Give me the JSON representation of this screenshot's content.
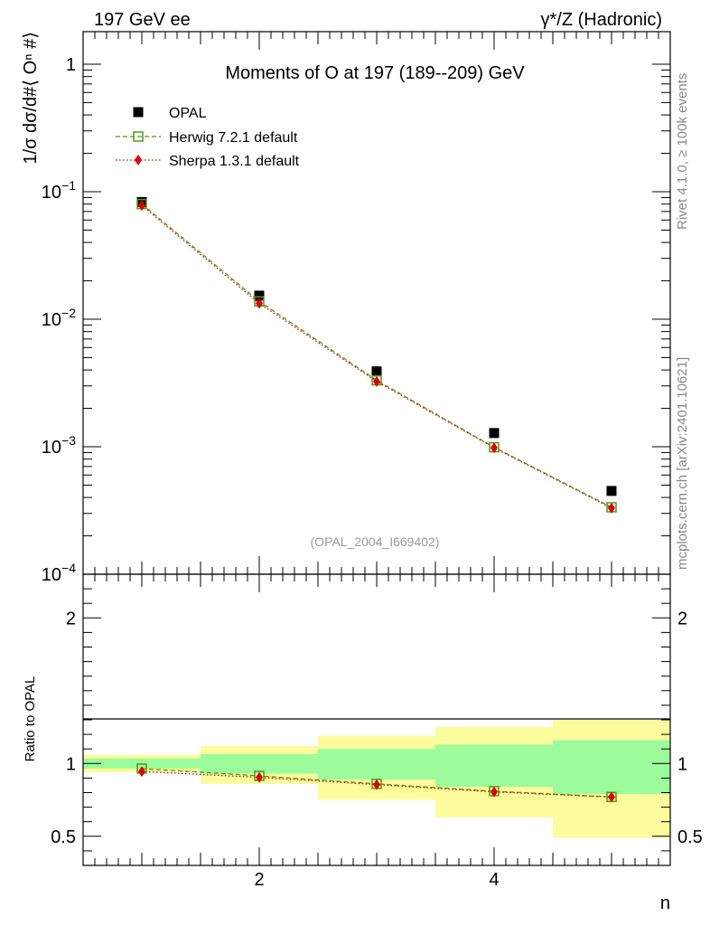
{
  "header": {
    "left": "197 GeV ee",
    "right": "γ*/Z (Hadronic)"
  },
  "side_text": {
    "rivet": "Rivet 4.1.0, ≥ 100k events",
    "mcplots": "mcplots.cern.ch [arXiv:2401.10621]"
  },
  "chart_data": [
    {
      "type": "scatter",
      "title": "Moments of O at 197 (189--209) GeV",
      "ylabel": "1/σ  dσ/d#⟨ Oⁿ #⟩",
      "xlabel": "n",
      "xlim": [
        0.5,
        5.5
      ],
      "ylim": [
        0.0001,
        1.8
      ],
      "yscale": "log",
      "watermark": "(OPAL_2004_I669402)",
      "yticks": [
        {
          "value": 1,
          "label": "1"
        },
        {
          "value": 0.1,
          "label": "10",
          "exp": "−1"
        },
        {
          "value": 0.01,
          "label": "10",
          "exp": "−2"
        },
        {
          "value": 0.001,
          "label": "10",
          "exp": "−3"
        },
        {
          "value": 0.0001,
          "label": "10",
          "exp": "−4"
        }
      ],
      "legend": [
        {
          "name": "OPAL",
          "marker": "square",
          "color": "#000000"
        },
        {
          "name": "Herwig 7.2.1 default",
          "marker": "open-square",
          "color": "#4a9a1a"
        },
        {
          "name": "Sherpa 1.3.1 default",
          "marker": "diamond",
          "color": "#e00000"
        }
      ],
      "series": [
        {
          "name": "OPAL",
          "x": [
            1,
            2,
            3,
            4,
            5
          ],
          "y": [
            0.083,
            0.0153,
            0.0039,
            0.00128,
            0.00045
          ]
        },
        {
          "name": "Herwig 7.2.1 default",
          "x": [
            1,
            2,
            3,
            4,
            5
          ],
          "y": [
            0.08,
            0.0138,
            0.00332,
            0.00099,
            0.000335
          ]
        },
        {
          "name": "Sherpa 1.3.1 default",
          "x": [
            1,
            2,
            3,
            4,
            5
          ],
          "y": [
            0.078,
            0.0133,
            0.00325,
            0.00098,
            0.00033
          ]
        }
      ]
    },
    {
      "type": "line",
      "ylabel": "Ratio to OPAL",
      "xlabel": "n",
      "xlim": [
        0.5,
        5.5
      ],
      "ylim": [
        0.3,
        2.3
      ],
      "xticks": [
        {
          "value": 2,
          "label": "2"
        },
        {
          "value": 4,
          "label": "4"
        }
      ],
      "yticks": [
        {
          "value": 0.5,
          "label": "0.5"
        },
        {
          "value": 1,
          "label": "1"
        },
        {
          "value": 2,
          "label": "2"
        }
      ],
      "bands": [
        {
          "xlo": 0.5,
          "xhi": 1.5,
          "stat": [
            0.965,
            1.035
          ],
          "total": [
            0.94,
            1.06
          ]
        },
        {
          "xlo": 1.5,
          "xhi": 2.5,
          "stat": [
            0.93,
            1.065
          ],
          "total": [
            0.86,
            1.12
          ]
        },
        {
          "xlo": 2.5,
          "xhi": 3.5,
          "stat": [
            0.89,
            1.1
          ],
          "total": [
            0.75,
            1.19
          ]
        },
        {
          "xlo": 3.5,
          "xhi": 4.5,
          "stat": [
            0.84,
            1.13
          ],
          "total": [
            0.63,
            1.25
          ]
        },
        {
          "xlo": 4.5,
          "xhi": 5.5,
          "stat": [
            0.79,
            1.16
          ],
          "total": [
            0.49,
            1.3
          ]
        }
      ],
      "series": [
        {
          "name": "Herwig 7.2.1 default",
          "x": [
            1,
            2,
            3,
            4,
            5
          ],
          "y": [
            0.965,
            0.915,
            0.86,
            0.81,
            0.77
          ]
        },
        {
          "name": "Sherpa 1.3.1 default",
          "x": [
            1,
            2,
            3,
            4,
            5
          ],
          "y": [
            0.945,
            0.905,
            0.855,
            0.805,
            0.77
          ]
        }
      ]
    }
  ],
  "colors": {
    "opal": "#000000",
    "herwig": "#4a9a1a",
    "sherpa": "#e00000",
    "band_stat": "#9cfc9c",
    "band_total": "#fcfc9c"
  }
}
